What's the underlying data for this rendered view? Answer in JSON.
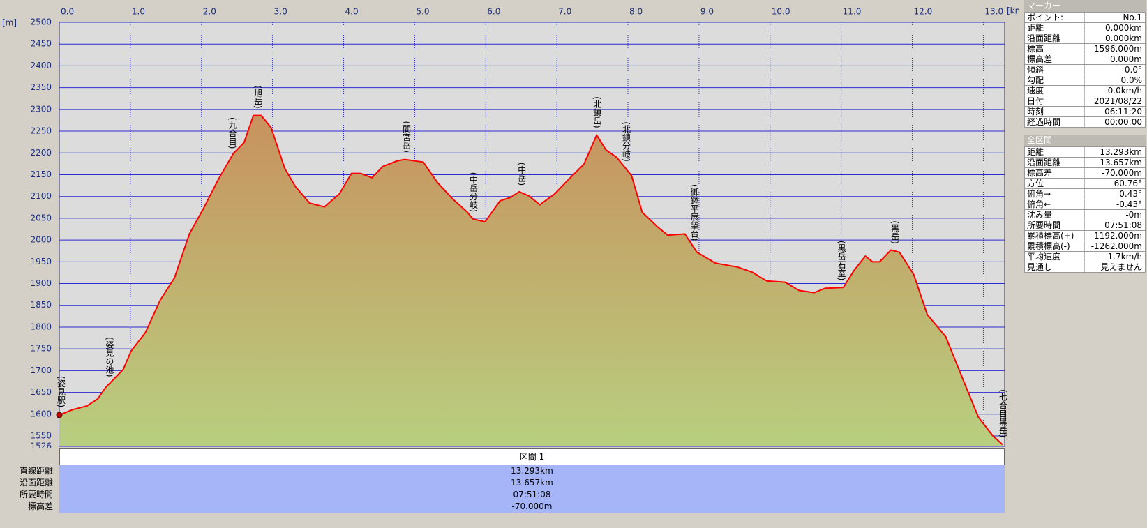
{
  "chart_data": {
    "type": "area",
    "xlabel": "[km]",
    "ylabel": "[m]",
    "color": "#ff0000",
    "xlim": [
      0,
      13.3
    ],
    "ylim": [
      1526,
      2500
    ],
    "xticks": [
      {
        "value": 0,
        "label": "0.0"
      },
      {
        "value": 1,
        "label": "1.0"
      },
      {
        "value": 2,
        "label": "2.0"
      },
      {
        "value": 3,
        "label": "3.0"
      },
      {
        "value": 4,
        "label": "4.0"
      },
      {
        "value": 5,
        "label": "5.0"
      },
      {
        "value": 6,
        "label": "6.0"
      },
      {
        "value": 7,
        "label": "7.0"
      },
      {
        "value": 8,
        "label": "8.0"
      },
      {
        "value": 9,
        "label": "9.0"
      },
      {
        "value": 10,
        "label": "10.0"
      },
      {
        "value": 11,
        "label": "11.0"
      },
      {
        "value": 12,
        "label": "12.0"
      },
      {
        "value": 13,
        "label": "13.0"
      }
    ],
    "yticks": [
      1526,
      1550,
      1600,
      1650,
      1700,
      1750,
      1800,
      1850,
      1900,
      1950,
      2000,
      2050,
      2100,
      2150,
      2200,
      2250,
      2300,
      2350,
      2400,
      2450,
      2500
    ],
    "grid": true,
    "x": [
      0,
      0.18,
      0.39,
      0.54,
      0.65,
      0.8,
      0.9,
      1.01,
      1.21,
      1.42,
      1.62,
      1.83,
      2.03,
      2.24,
      2.45,
      2.6,
      2.73,
      2.84,
      2.98,
      3.17,
      3.32,
      3.52,
      3.73,
      3.94,
      4.11,
      4.24,
      4.4,
      4.55,
      4.76,
      4.86,
      5.12,
      5.32,
      5.53,
      5.74,
      5.82,
      5.99,
      6.2,
      6.35,
      6.47,
      6.61,
      6.76,
      6.97,
      7.17,
      7.38,
      7.56,
      7.69,
      7.84,
      8.05,
      8.2,
      8.41,
      8.56,
      8.8,
      8.97,
      9.23,
      9.54,
      9.75,
      9.95,
      10.21,
      10.41,
      10.62,
      10.77,
      11.03,
      11.18,
      11.34,
      11.44,
      11.54,
      11.7,
      11.82,
      12.02,
      12.21,
      12.47,
      12.72,
      12.93,
      13.13,
      13.27
    ],
    "values": [
      1598,
      1610,
      1619,
      1635,
      1661,
      1686,
      1703,
      1745,
      1787,
      1862,
      1913,
      2014,
      2073,
      2140,
      2199,
      2224,
      2286,
      2286,
      2258,
      2165,
      2123,
      2085,
      2076,
      2106,
      2153,
      2153,
      2143,
      2169,
      2182,
      2185,
      2179,
      2132,
      2095,
      2064,
      2048,
      2042,
      2090,
      2098,
      2111,
      2101,
      2081,
      2106,
      2140,
      2174,
      2241,
      2207,
      2190,
      2148,
      2064,
      2031,
      2011,
      2014,
      1972,
      1947,
      1938,
      1926,
      1906,
      1903,
      1884,
      1879,
      1889,
      1891,
      1930,
      1963,
      1950,
      1950,
      1977,
      1972,
      1921,
      1829,
      1778,
      1677,
      1593,
      1551,
      1530
    ],
    "annotations": [
      {
        "text": "(姿見駅)",
        "x": 0.02
      },
      {
        "text": "(姿見の池)",
        "x": 0.7
      },
      {
        "text": "(九合目)",
        "x": 2.43
      },
      {
        "text": "(旭岳)",
        "x": 2.79
      },
      {
        "text": "(間宮岳)",
        "x": 4.88
      },
      {
        "text": "(中岳分岐)",
        "x": 5.82
      },
      {
        "text": "(中岳)",
        "x": 6.5
      },
      {
        "text": "(北鎮岳)",
        "x": 7.56
      },
      {
        "text": "(北鎮分岐)",
        "x": 7.97
      },
      {
        "text": "(御鉢平展望台)",
        "x": 8.93
      },
      {
        "text": "(黒岳石室)",
        "x": 11.0
      },
      {
        "text": "(黒岳)",
        "x": 11.75
      },
      {
        "text": "(七合目黒岳)",
        "x": 13.27
      }
    ]
  },
  "marker_panel": {
    "title": "マーカー",
    "rows": [
      [
        "ポイント:",
        "No.1"
      ],
      [
        "距離",
        "0.000km"
      ],
      [
        "沿面距離",
        "0.000km"
      ],
      [
        "標高",
        "1596.000m"
      ],
      [
        "標高差",
        "0.000m"
      ],
      [
        "傾斜",
        "0.0°"
      ],
      [
        "勾配",
        "0.0%"
      ],
      [
        "速度",
        "0.0km/h"
      ],
      [
        "日付",
        "2021/08/22"
      ],
      [
        "時刻",
        "06:11:20"
      ],
      [
        "経過時間",
        "00:00:00"
      ]
    ]
  },
  "summary_panel": {
    "title": "全区間",
    "rows": [
      [
        "距離",
        "13.293km"
      ],
      [
        "沿面距離",
        "13.657km"
      ],
      [
        "標高差",
        "-70.000m"
      ],
      [
        "方位",
        "60.76°"
      ],
      [
        "俯角→",
        "0.43°"
      ],
      [
        "俯角←",
        "-0.43°"
      ],
      [
        "沈み量",
        "-0m"
      ],
      [
        "所要時間",
        "07:51:08"
      ],
      [
        "累積標高(+)",
        "1192.000m"
      ],
      [
        "累積標高(-)",
        "-1262.000m"
      ],
      [
        "平均速度",
        "1.7km/h"
      ],
      [
        "見通し",
        "見えません"
      ]
    ]
  },
  "section_table": {
    "header": "区間 1",
    "row_labels": [
      "直線距離",
      "沿面距離",
      "所要時間",
      "標高差"
    ],
    "values": [
      "13.293km",
      "13.657km",
      "07:51:08",
      "-70.000m"
    ]
  }
}
